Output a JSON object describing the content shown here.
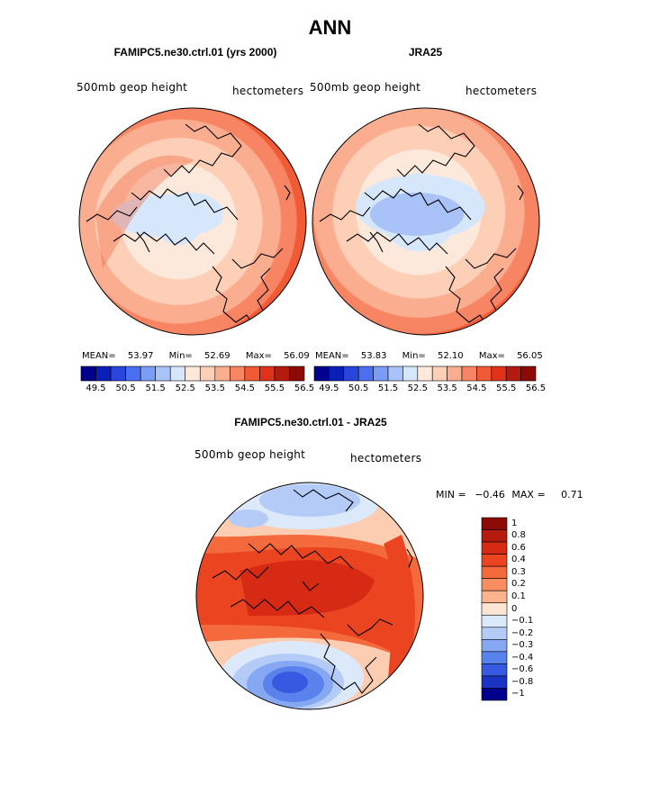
{
  "title": "ANN",
  "colors": {
    "scale": [
      "#00008c",
      "#0a1fb8",
      "#2a45dc",
      "#4a6ff0",
      "#7b9cf4",
      "#a9c2f7",
      "#d7e7fb",
      "#fde9dc",
      "#fdcfb6",
      "#fbad8f",
      "#f78462",
      "#f05a35",
      "#e0321a",
      "#b31b0e",
      "#8c0a05"
    ]
  },
  "panels": [
    {
      "title": "FAMIPC5.ne30.ctrl.01 (yrs 2000)",
      "left_label": "500mb geop height",
      "right_label": "hectometers",
      "mean_label": "MEAN=",
      "mean": "53.97",
      "min_label": "Min=",
      "min": "52.69",
      "max_label": "Max=",
      "max": "56.09"
    },
    {
      "title": "JRA25",
      "left_label": "500mb geop height",
      "right_label": "hectometers",
      "mean_label": "MEAN=",
      "mean": "53.83",
      "min_label": "Min=",
      "min": "52.10",
      "max_label": "Max=",
      "max": "56.05"
    }
  ],
  "diff": {
    "title": "FAMIPC5.ne30.ctrl.01 - JRA25",
    "left_label": "500mb geop height",
    "right_label": "hectometers",
    "min_label": "MIN =",
    "min": "−0.46",
    "max_label": "MAX =",
    "max": "0.71",
    "legend_labels": [
      "1",
      "0.8",
      "0.6",
      "0.4",
      "0.3",
      "0.2",
      "0.1",
      "0",
      "−0.1",
      "−0.2",
      "−0.3",
      "−0.4",
      "−0.6",
      "−0.8",
      "−1"
    ],
    "legend_colors": [
      "#8c0a05",
      "#b31b0e",
      "#d62a14",
      "#ea4420",
      "#f56a3c",
      "#f98d62",
      "#fbb48e",
      "#fde5d3",
      "#dce9fa",
      "#b3cbf6",
      "#86a8f2",
      "#5a82ec",
      "#3559e0",
      "#1a33c4",
      "#00008c"
    ]
  },
  "chart_data": [
    {
      "type": "heatmap",
      "title": "FAMIPC5.ne30.ctrl.01 (yrs 2000)",
      "variable": "500mb geop height",
      "units": "hectometers",
      "mean": 53.97,
      "min": 52.69,
      "max": 56.09,
      "colorbar_ticks": [
        "49.5",
        "50.5",
        "51.5",
        "52.5",
        "53.5",
        "54.5",
        "55.5",
        "56.5"
      ],
      "colorbar_levels": [
        49.5,
        50,
        50.5,
        51,
        51.5,
        52,
        52.5,
        53,
        53.5,
        54,
        54.5,
        55,
        55.5,
        56,
        56.5
      ]
    },
    {
      "type": "heatmap",
      "title": "JRA25",
      "variable": "500mb geop height",
      "units": "hectometers",
      "mean": 53.83,
      "min": 52.1,
      "max": 56.05,
      "colorbar_ticks": [
        "49.5",
        "50.5",
        "51.5",
        "52.5",
        "53.5",
        "54.5",
        "55.5",
        "56.5"
      ],
      "colorbar_levels": [
        49.5,
        50,
        50.5,
        51,
        51.5,
        52,
        52.5,
        53,
        53.5,
        54,
        54.5,
        55,
        55.5,
        56,
        56.5
      ]
    },
    {
      "type": "heatmap",
      "title": "FAMIPC5.ne30.ctrl.01 - JRA25",
      "variable": "500mb geop height",
      "units": "hectometers",
      "min": -0.46,
      "max": 0.71,
      "colorbar_levels": [
        1,
        0.8,
        0.6,
        0.4,
        0.3,
        0.2,
        0.1,
        0,
        -0.1,
        -0.2,
        -0.3,
        -0.4,
        -0.6,
        -0.8,
        -1
      ]
    }
  ]
}
